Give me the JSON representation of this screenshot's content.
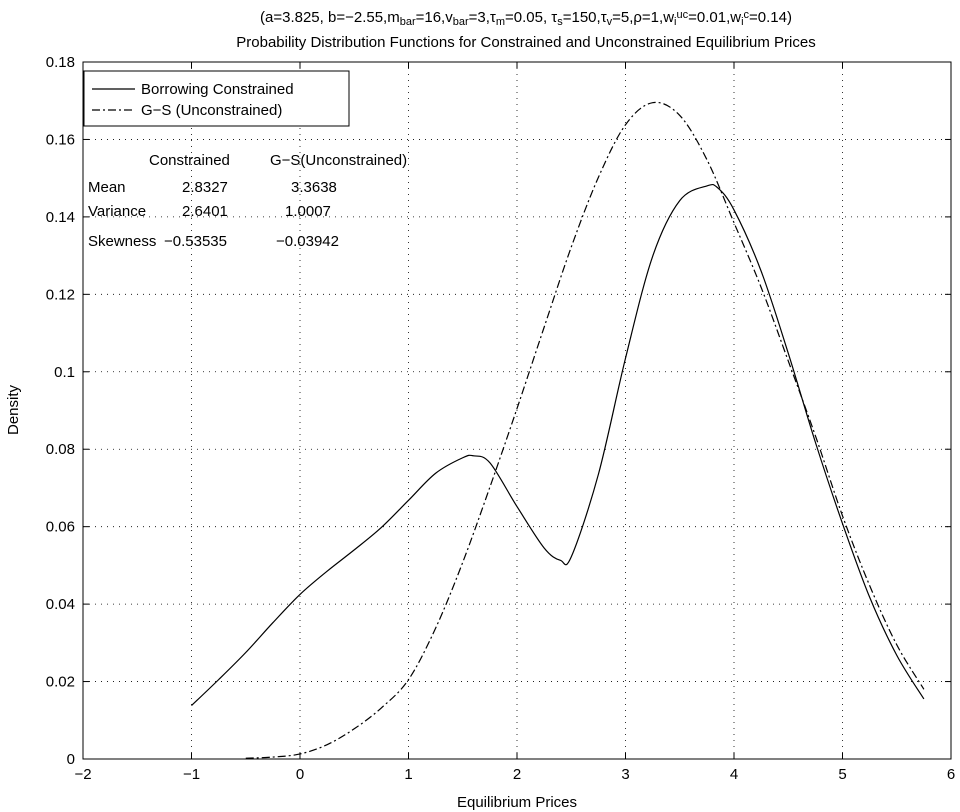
{
  "chart_data": {
    "type": "line",
    "title_parts": [
      {
        "t": "(a=3.825, b=−2.55,m"
      },
      {
        "t": "bar",
        "s": "sub"
      },
      {
        "t": "=16,v"
      },
      {
        "t": "bar",
        "s": "sub"
      },
      {
        "t": "=3,τ"
      },
      {
        "t": "m",
        "s": "sub"
      },
      {
        "t": "=0.05, τ"
      },
      {
        "t": "s",
        "s": "sub"
      },
      {
        "t": "=150,τ"
      },
      {
        "t": "v",
        "s": "sub"
      },
      {
        "t": "=5,ρ=1,w"
      },
      {
        "t": "i",
        "s": "sub"
      },
      {
        "t": "uc",
        "s": "sup"
      },
      {
        "t": "=0.01,w"
      },
      {
        "t": "i",
        "s": "sub"
      },
      {
        "t": "c",
        "s": "sup"
      },
      {
        "t": "=0.14)"
      }
    ],
    "title": "Probability Distribution Functions for Constrained and Unconstrained Equilibrium Prices",
    "xlabel": "Equilibrium Prices",
    "ylabel": "Density",
    "xlim": [
      -2,
      6
    ],
    "ylim": [
      0,
      0.18
    ],
    "xticks": [
      -2,
      -1,
      0,
      1,
      2,
      3,
      4,
      5,
      6
    ],
    "yticks": [
      0,
      0.02,
      0.04,
      0.06,
      0.08,
      0.1,
      0.12,
      0.14,
      0.16,
      0.18
    ],
    "xtick_labels": [
      "−2",
      "−1",
      "0",
      "1",
      "2",
      "3",
      "4",
      "5",
      "6"
    ],
    "ytick_labels": [
      "0",
      "0.02",
      "0.04",
      "0.06",
      "0.08",
      "0.1",
      "0.12",
      "0.14",
      "0.16",
      "0.18"
    ],
    "grid": true,
    "legend_position": "top-left",
    "series": [
      {
        "name": "Borrowing Constrained",
        "style": "solid",
        "x": [
          -1.0,
          -0.75,
          -0.5,
          -0.25,
          0.0,
          0.25,
          0.5,
          0.75,
          1.0,
          1.25,
          1.5,
          1.6,
          1.75,
          2.0,
          2.25,
          2.4,
          2.5,
          2.75,
          3.0,
          3.25,
          3.5,
          3.75,
          3.85,
          4.0,
          4.25,
          4.5,
          4.75,
          5.0,
          5.25,
          5.5,
          5.75
        ],
        "y": [
          0.0138,
          0.0205,
          0.0275,
          0.0352,
          0.0425,
          0.0485,
          0.054,
          0.0598,
          0.0668,
          0.0738,
          0.0778,
          0.0783,
          0.0765,
          0.0652,
          0.0545,
          0.0513,
          0.0522,
          0.0735,
          0.1035,
          0.1298,
          0.1442,
          0.148,
          0.1475,
          0.1418,
          0.126,
          0.1048,
          0.0818,
          0.0608,
          0.0418,
          0.0268,
          0.0155
        ]
      },
      {
        "name": "G−S (Unconstrained)",
        "style": "dashdot",
        "x": [
          -0.5,
          -0.25,
          0.0,
          0.25,
          0.5,
          0.75,
          1.0,
          1.25,
          1.5,
          1.75,
          2.0,
          2.25,
          2.5,
          2.75,
          3.0,
          3.25,
          3.5,
          3.75,
          4.0,
          4.25,
          4.5,
          4.75,
          5.0,
          5.25,
          5.5,
          5.75
        ],
        "y": [
          0.0002,
          0.0005,
          0.0013,
          0.0037,
          0.0078,
          0.0132,
          0.0205,
          0.0338,
          0.0508,
          0.0702,
          0.0905,
          0.1115,
          0.1322,
          0.1502,
          0.1638,
          0.1695,
          0.1662,
          0.1548,
          0.1385,
          0.1218,
          0.1028,
          0.0835,
          0.0628,
          0.0448,
          0.0295,
          0.018
        ]
      }
    ],
    "stats_table": {
      "col_headers": [
        "Constrained",
        "G−S(Unconstrained)"
      ],
      "rows": [
        {
          "label": "Mean",
          "constrained": "2.8327",
          "unconstrained": "3.3638"
        },
        {
          "label": "Variance",
          "constrained": "2.6401",
          "unconstrained": "1.0007"
        },
        {
          "label": "Skewness",
          "constrained": "−0.53535",
          "unconstrained": "−0.03942"
        }
      ]
    }
  }
}
